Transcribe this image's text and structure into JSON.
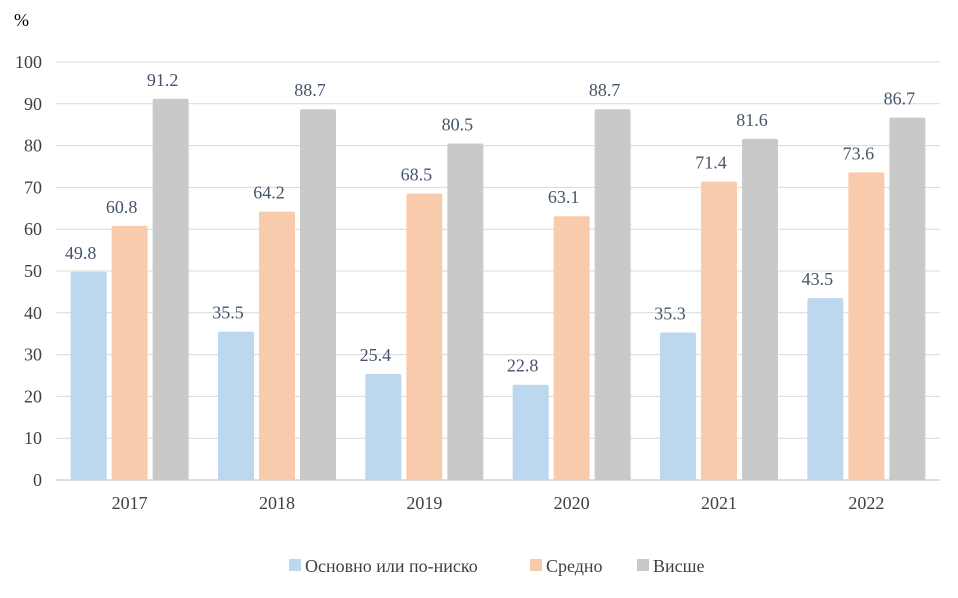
{
  "chart_data": {
    "type": "bar",
    "ylabel": "%",
    "ylim": [
      0,
      100
    ],
    "ytick_step": 10,
    "grid": true,
    "legend_position": "bottom",
    "categories": [
      "2017",
      "2018",
      "2019",
      "2020",
      "2021",
      "2022"
    ],
    "series": [
      {
        "name": "Основно или по-ниско",
        "color": "#bdd7ee",
        "values": [
          49.8,
          35.5,
          25.4,
          22.8,
          35.3,
          43.5
        ]
      },
      {
        "name": "Средно",
        "color": "#f8cbad",
        "values": [
          60.8,
          64.2,
          68.5,
          63.1,
          71.4,
          73.6
        ]
      },
      {
        "name": "Висше",
        "color": "#c9c9c9",
        "values": [
          91.2,
          88.7,
          80.5,
          88.7,
          81.6,
          86.7
        ]
      }
    ]
  }
}
